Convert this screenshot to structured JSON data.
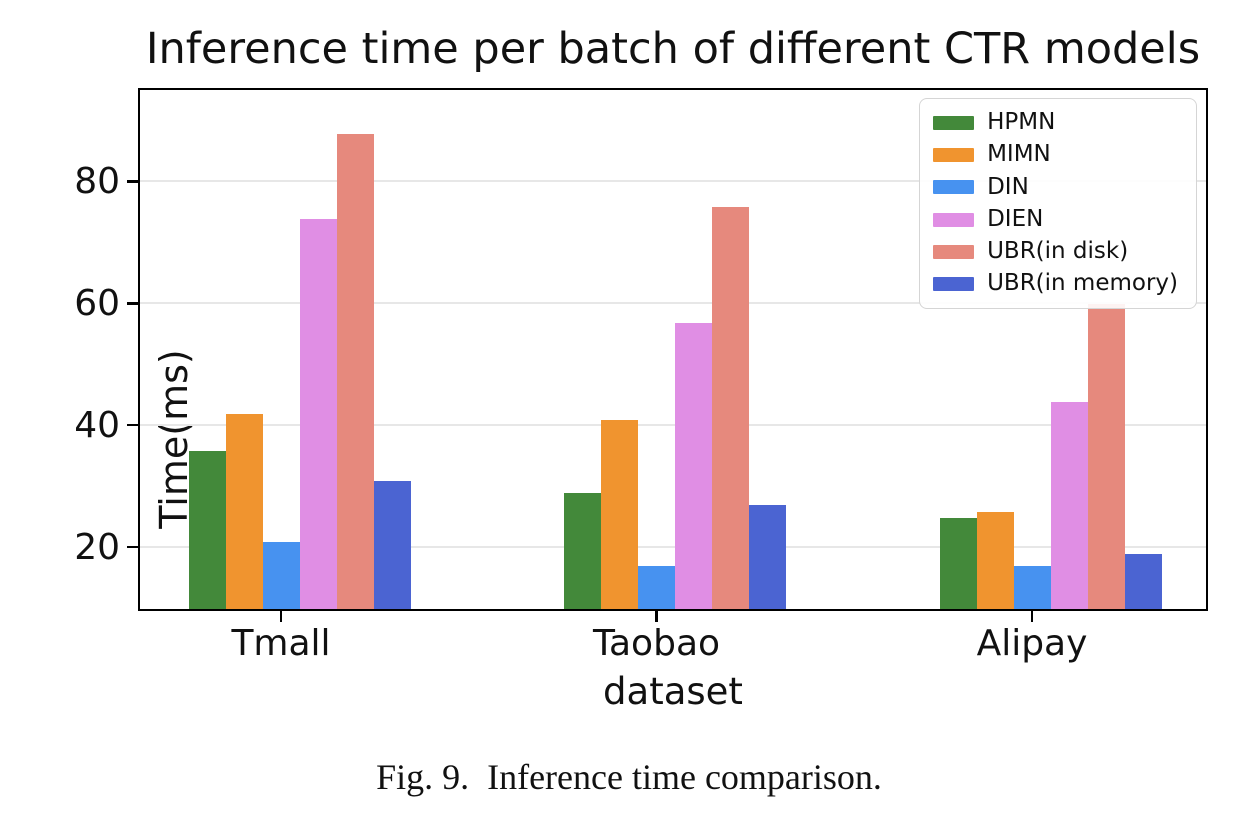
{
  "figure": {
    "caption": "Fig. 9.  Inference time comparison."
  },
  "chart_data": {
    "type": "bar",
    "title": "Inference time per batch of different CTR models",
    "xlabel": "dataset",
    "ylabel": "Time(ms)",
    "categories": [
      "Tmall",
      "Taobao",
      "Alipay"
    ],
    "series": [
      {
        "name": "HPMN",
        "color": "#43893a",
        "values": [
          36,
          29,
          25
        ]
      },
      {
        "name": "MIMN",
        "color": "#f0942f",
        "values": [
          42,
          41,
          26
        ]
      },
      {
        "name": "DIN",
        "color": "#4792f0",
        "values": [
          21,
          17,
          17
        ]
      },
      {
        "name": "DIEN",
        "color": "#e08ee4",
        "values": [
          74,
          57,
          44
        ]
      },
      {
        "name": "UBR(in disk)",
        "color": "#e6897d",
        "values": [
          88,
          76,
          60
        ]
      },
      {
        "name": "UBR(in memory)",
        "color": "#4b64d2",
        "values": [
          31,
          27,
          19
        ]
      }
    ],
    "ylim": [
      10,
      95
    ],
    "yticks": [
      20,
      40,
      60,
      80
    ],
    "grid": true,
    "grid_color": "#e7e7e7",
    "legend_position": "upper right"
  }
}
